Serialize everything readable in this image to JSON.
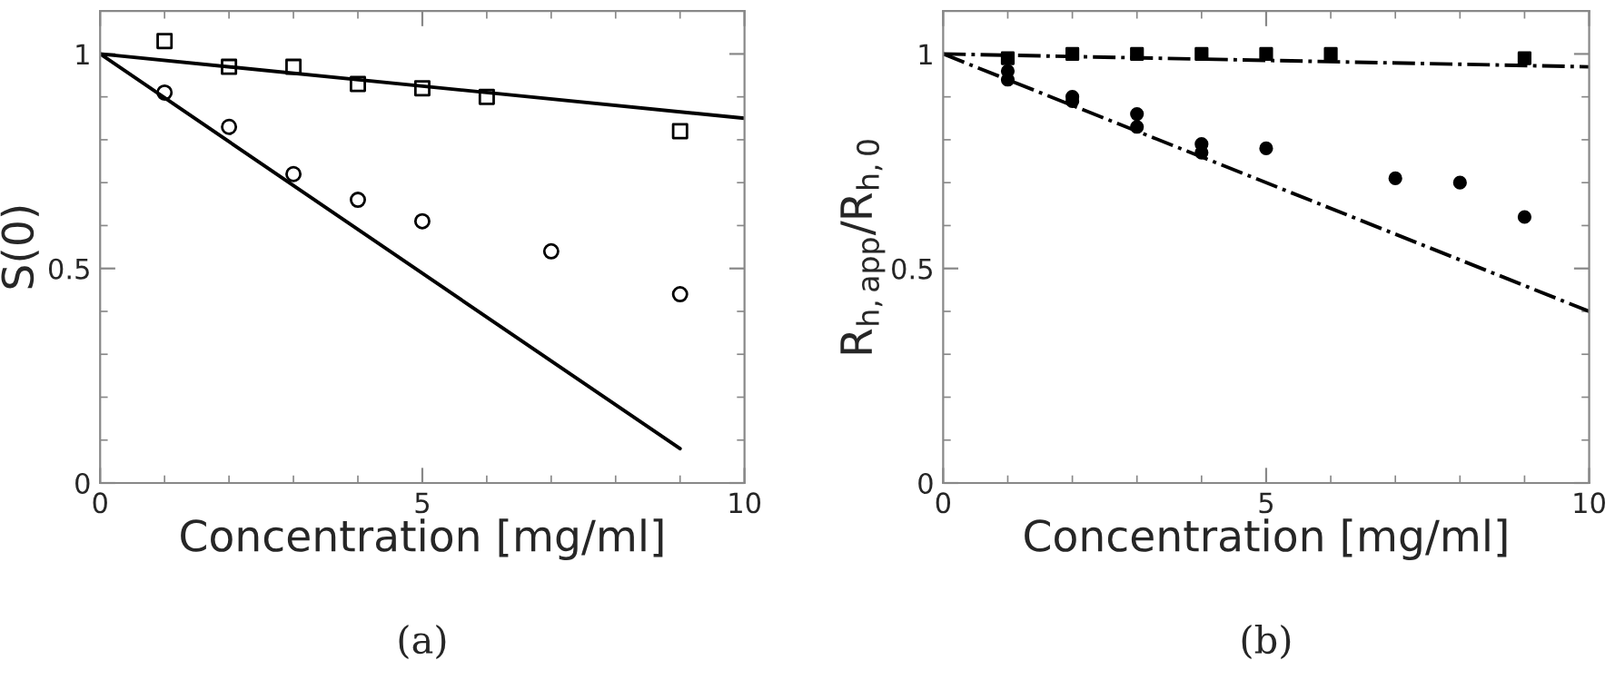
{
  "chart_data": [
    {
      "type": "scatter",
      "xlabel": "Concentration [mg/ml]",
      "ylabel": "S(0)",
      "annotations": [
        "(a)"
      ],
      "xlim": [
        0,
        10
      ],
      "ylim": [
        0,
        1.1
      ],
      "xticks": [
        0,
        5,
        10
      ],
      "yticks": [
        0,
        0.5,
        1
      ],
      "grid": false,
      "legend": false,
      "series": [
        {
          "marker": "square-open",
          "color": "#000000",
          "x": [
            1,
            2,
            3,
            4,
            5,
            6,
            9
          ],
          "values": [
            1.03,
            0.97,
            0.97,
            0.93,
            0.92,
            0.9,
            0.82
          ]
        },
        {
          "marker": "circle-open",
          "color": "#000000",
          "x": [
            1,
            2,
            3,
            4,
            5,
            7,
            9
          ],
          "values": [
            0.91,
            0.83,
            0.72,
            0.66,
            0.61,
            0.54,
            0.44
          ]
        },
        {
          "type": "line",
          "marker": "none",
          "line_style": "solid",
          "color": "#000000",
          "x": [
            0,
            10
          ],
          "values": [
            1,
            0.85
          ]
        },
        {
          "type": "line",
          "marker": "none",
          "line_style": "solid",
          "color": "#000000",
          "x": [
            0,
            9
          ],
          "values": [
            1,
            0.08
          ]
        }
      ]
    },
    {
      "type": "scatter",
      "xlabel": "Concentration [mg/ml]",
      "ylabel": "R$_{h,app}$/R$_{h,0}$",
      "annotations": [
        "(b)"
      ],
      "xlim": [
        0,
        10
      ],
      "ylim": [
        0,
        1.1
      ],
      "xticks": [
        0,
        5,
        10
      ],
      "yticks": [
        0,
        0.5,
        1
      ],
      "grid": false,
      "legend": false,
      "series": [
        {
          "marker": "square",
          "color": "#000000",
          "x": [
            1,
            2,
            3,
            4,
            5,
            6,
            9
          ],
          "values": [
            0.99,
            1.0,
            1.0,
            1.0,
            1.0,
            1.0,
            0.99
          ]
        },
        {
          "marker": "circle",
          "color": "#000000",
          "x": [
            1,
            1,
            2,
            2,
            3,
            3,
            4,
            4,
            5,
            7,
            8,
            9
          ],
          "values": [
            0.96,
            0.94,
            0.9,
            0.89,
            0.86,
            0.83,
            0.79,
            0.77,
            0.78,
            0.71,
            0.7,
            0.62
          ]
        },
        {
          "type": "line",
          "marker": "none",
          "line_style": "dashdot",
          "color": "#000000",
          "x": [
            0,
            10
          ],
          "values": [
            1,
            0.97
          ]
        },
        {
          "type": "line",
          "marker": "none",
          "line_style": "dashdot",
          "color": "#000000",
          "x": [
            0,
            10
          ],
          "values": [
            1,
            0.4
          ]
        }
      ]
    }
  ]
}
